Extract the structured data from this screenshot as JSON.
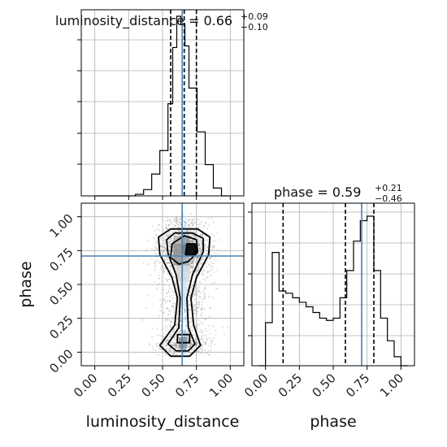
{
  "chart_data": [
    {
      "type": "histogram",
      "panel": "luminosity_distance marginal",
      "title_main": "luminosity_distance = 0.66",
      "title_plus": "+0.09",
      "title_minus": "−0.10",
      "xlim": [
        -0.1,
        1.1
      ],
      "bins": [
        {
          "x0": 0.0,
          "x1": 0.3,
          "count": 0
        },
        {
          "x0": 0.3,
          "x1": 0.36,
          "count": 2
        },
        {
          "x0": 0.36,
          "x1": 0.42,
          "count": 8
        },
        {
          "x0": 0.42,
          "x1": 0.48,
          "count": 28
        },
        {
          "x0": 0.48,
          "x1": 0.54,
          "count": 58
        },
        {
          "x0": 0.54,
          "x1": 0.575,
          "count": 118
        },
        {
          "x0": 0.575,
          "x1": 0.605,
          "count": 190
        },
        {
          "x0": 0.605,
          "x1": 0.635,
          "count": 230
        },
        {
          "x0": 0.635,
          "x1": 0.665,
          "count": 220
        },
        {
          "x0": 0.665,
          "x1": 0.695,
          "count": 192
        },
        {
          "x0": 0.695,
          "x1": 0.755,
          "count": 138
        },
        {
          "x0": 0.755,
          "x1": 0.815,
          "count": 82
        },
        {
          "x0": 0.815,
          "x1": 0.875,
          "count": 40
        },
        {
          "x0": 0.875,
          "x1": 0.935,
          "count": 10
        },
        {
          "x0": 0.935,
          "x1": 0.995,
          "count": 0
        }
      ],
      "quantiles": [
        0.56,
        0.66,
        0.75
      ],
      "truth": 0.645
    },
    {
      "type": "scatter",
      "panel": "luminosity_distance vs phase",
      "xlabel": "luminosity_distance",
      "ylabel": "phase",
      "xlim": [
        -0.1,
        1.1
      ],
      "ylim": [
        -0.1,
        1.1
      ],
      "x_ticks": [
        "0.00",
        "0.25",
        "0.50",
        "0.75",
        "1.00"
      ],
      "y_ticks": [
        "0.00",
        "0.25",
        "0.50",
        "0.75",
        "1.00"
      ],
      "x_tick_values": [
        0,
        0.25,
        0.5,
        0.75,
        1.0
      ],
      "y_tick_values": [
        0,
        0.25,
        0.5,
        0.75,
        1.0
      ],
      "truth": {
        "x": 0.645,
        "y": 0.71
      },
      "point_cloud": {
        "center_x": 0.66,
        "spread_x": 0.09,
        "y_min": 0.0,
        "y_max": 1.0,
        "n": 2600
      },
      "contours": [
        {
          "level": "outer",
          "points": [
            [
              0.48,
              0.05
            ],
            [
              0.56,
              -0.03
            ],
            [
              0.7,
              -0.03
            ],
            [
              0.78,
              0.05
            ],
            [
              0.73,
              0.2
            ],
            [
              0.71,
              0.4
            ],
            [
              0.75,
              0.55
            ],
            [
              0.84,
              0.72
            ],
            [
              0.85,
              0.85
            ],
            [
              0.76,
              0.91
            ],
            [
              0.56,
              0.91
            ],
            [
              0.47,
              0.85
            ],
            [
              0.48,
              0.72
            ],
            [
              0.57,
              0.55
            ],
            [
              0.61,
              0.4
            ],
            [
              0.59,
              0.2
            ]
          ]
        },
        {
          "level": "middle",
          "points": [
            [
              0.54,
              0.06
            ],
            [
              0.6,
              0.01
            ],
            [
              0.69,
              0.01
            ],
            [
              0.74,
              0.06
            ],
            [
              0.69,
              0.18
            ],
            [
              0.68,
              0.4
            ],
            [
              0.72,
              0.57
            ],
            [
              0.8,
              0.74
            ],
            [
              0.8,
              0.84
            ],
            [
              0.72,
              0.88
            ],
            [
              0.59,
              0.88
            ],
            [
              0.53,
              0.83
            ],
            [
              0.54,
              0.73
            ],
            [
              0.6,
              0.57
            ],
            [
              0.63,
              0.4
            ],
            [
              0.62,
              0.18
            ]
          ]
        },
        {
          "level": "inner",
          "points": [
            [
              0.61,
              0.13
            ],
            [
              0.7,
              0.13
            ],
            [
              0.7,
              0.07
            ],
            [
              0.61,
              0.07
            ]
          ]
        },
        {
          "level": "core",
          "points": [
            [
              0.56,
              0.7
            ],
            [
              0.57,
              0.8
            ],
            [
              0.66,
              0.86
            ],
            [
              0.75,
              0.83
            ],
            [
              0.76,
              0.74
            ],
            [
              0.69,
              0.67
            ],
            [
              0.62,
              0.65
            ]
          ]
        },
        {
          "level": "peak",
          "points": [
            [
              0.67,
              0.72
            ],
            [
              0.68,
              0.8
            ],
            [
              0.74,
              0.8
            ],
            [
              0.75,
              0.74
            ],
            [
              0.71,
              0.71
            ]
          ]
        }
      ],
      "density_cells": [
        {
          "x": 0.62,
          "y": 0.03,
          "w": 0.06,
          "h": 0.08,
          "shade": 0.55
        },
        {
          "x": 0.6,
          "y": 0.32,
          "w": 0.08,
          "h": 0.2,
          "shade": 0.14
        },
        {
          "x": 0.6,
          "y": 0.52,
          "w": 0.1,
          "h": 0.12,
          "shade": 0.2
        },
        {
          "x": 0.58,
          "y": 0.64,
          "w": 0.06,
          "h": 0.08,
          "shade": 0.5
        },
        {
          "x": 0.64,
          "y": 0.64,
          "w": 0.06,
          "h": 0.08,
          "shade": 0.42
        },
        {
          "x": 0.58,
          "y": 0.72,
          "w": 0.06,
          "h": 0.08,
          "shade": 0.55
        },
        {
          "x": 0.64,
          "y": 0.72,
          "w": 0.06,
          "h": 0.08,
          "shade": 0.7
        },
        {
          "x": 0.7,
          "y": 0.72,
          "w": 0.06,
          "h": 0.08,
          "shade": 0.9
        },
        {
          "x": 0.58,
          "y": 0.8,
          "w": 0.06,
          "h": 0.06,
          "shade": 0.35
        },
        {
          "x": 0.64,
          "y": 0.8,
          "w": 0.06,
          "h": 0.06,
          "shade": 0.5
        }
      ]
    },
    {
      "type": "histogram",
      "panel": "phase marginal",
      "title_main": "phase = 0.59",
      "title_plus": "+0.21",
      "title_minus": "−0.46",
      "xlabel": "phase",
      "xlim": [
        -0.1,
        1.1
      ],
      "x_ticks": [
        "0.00",
        "0.25",
        "0.50",
        "0.75",
        "1.00"
      ],
      "x_tick_values": [
        0,
        0.25,
        0.5,
        0.75,
        1.0
      ],
      "bins": [
        {
          "x0": -0.05,
          "x1": 0.0,
          "count": 0
        },
        {
          "x0": 0.0,
          "x1": 0.05,
          "count": 38
        },
        {
          "x0": 0.05,
          "x1": 0.1,
          "count": 100
        },
        {
          "x0": 0.1,
          "x1": 0.15,
          "count": 66
        },
        {
          "x0": 0.15,
          "x1": 0.2,
          "count": 64
        },
        {
          "x0": 0.2,
          "x1": 0.25,
          "count": 60
        },
        {
          "x0": 0.25,
          "x1": 0.3,
          "count": 56
        },
        {
          "x0": 0.3,
          "x1": 0.35,
          "count": 52
        },
        {
          "x0": 0.35,
          "x1": 0.4,
          "count": 47
        },
        {
          "x0": 0.4,
          "x1": 0.45,
          "count": 42
        },
        {
          "x0": 0.45,
          "x1": 0.5,
          "count": 40
        },
        {
          "x0": 0.5,
          "x1": 0.55,
          "count": 42
        },
        {
          "x0": 0.55,
          "x1": 0.6,
          "count": 60
        },
        {
          "x0": 0.6,
          "x1": 0.65,
          "count": 84
        },
        {
          "x0": 0.65,
          "x1": 0.7,
          "count": 110
        },
        {
          "x0": 0.7,
          "x1": 0.75,
          "count": 128
        },
        {
          "x0": 0.75,
          "x1": 0.8,
          "count": 132
        },
        {
          "x0": 0.8,
          "x1": 0.85,
          "count": 84
        },
        {
          "x0": 0.85,
          "x1": 0.9,
          "count": 42
        },
        {
          "x0": 0.9,
          "x1": 0.95,
          "count": 22
        },
        {
          "x0": 0.95,
          "x1": 1.0,
          "count": 8
        },
        {
          "x0": 1.0,
          "x1": 1.05,
          "count": 0
        }
      ],
      "quantiles": [
        0.13,
        0.59,
        0.8
      ],
      "truth": 0.71
    }
  ],
  "colors": {
    "truth": "#4682b4",
    "hist_line": "#000000",
    "quantile_line": "#000000",
    "grid": "#b0b0b0",
    "points": "#808080",
    "frame": "#000000"
  }
}
